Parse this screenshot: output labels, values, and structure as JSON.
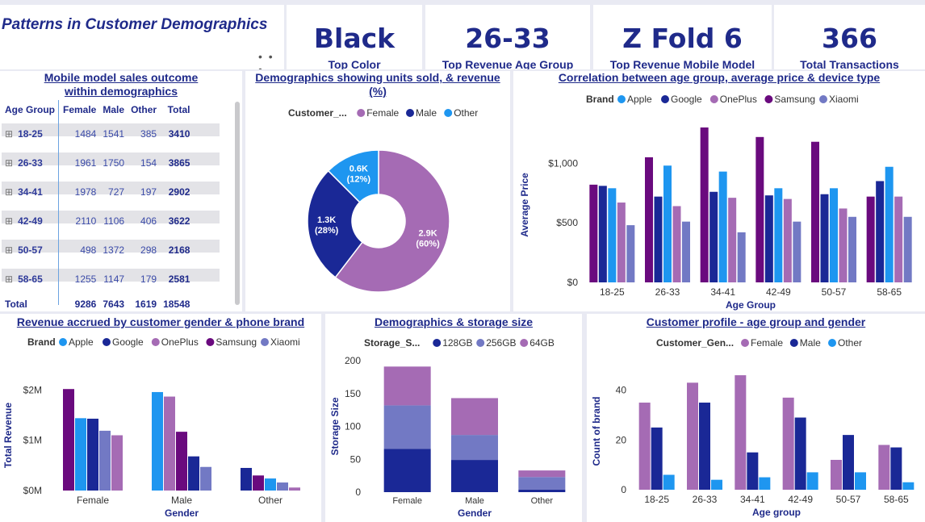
{
  "page_title": "Patterns in Customer Demographics",
  "menu_dots": "• • •",
  "kpis": [
    {
      "value": "Black",
      "label": "Top Color"
    },
    {
      "value": "26-33",
      "label": "Top Revenue Age Group"
    },
    {
      "value": "Z Fold 6",
      "label": "Top Revenue Mobile Model"
    },
    {
      "value": "366",
      "label": "Total Transactions"
    }
  ],
  "colors": {
    "Apple": "#1e96f0",
    "Google": "#1a2896",
    "OnePlus": "#a56bb4",
    "Samsung": "#6a0a7e",
    "Xiaomi": "#7279c4",
    "Female": "#a56bb4",
    "Male": "#1a2896",
    "Other": "#1e96f0",
    "128GB": "#1a2896",
    "256GB": "#7279c4",
    "64GB": "#a56bb4"
  },
  "matrix": {
    "title": "Mobile model sales outcome within demographics",
    "headers": [
      "Age Group",
      "Female",
      "Male",
      "Other",
      "Total"
    ],
    "rows": [
      [
        "18-25",
        "1484",
        "1541",
        "385",
        "3410"
      ],
      [
        "26-33",
        "1961",
        "1750",
        "154",
        "3865"
      ],
      [
        "34-41",
        "1978",
        "727",
        "197",
        "2902"
      ],
      [
        "42-49",
        "2110",
        "1106",
        "406",
        "3622"
      ],
      [
        "50-57",
        "498",
        "1372",
        "298",
        "2168"
      ],
      [
        "58-65",
        "1255",
        "1147",
        "179",
        "2581"
      ]
    ],
    "total": [
      "Total",
      "9286",
      "7643",
      "1619",
      "18548"
    ]
  },
  "chart_data": [
    {
      "id": "donut",
      "type": "pie",
      "title": "Demographics showing units sold, & revenue (%)",
      "legend_title": "Customer_...",
      "categories": [
        "Female",
        "Male",
        "Other"
      ],
      "values": [
        2.9,
        1.3,
        0.6
      ],
      "labels": [
        [
          "2.9K",
          "(60%)"
        ],
        [
          "1.3K",
          "(28%)"
        ],
        [
          "0.6K",
          "(12%)"
        ]
      ]
    },
    {
      "id": "corr",
      "type": "bar",
      "title": "Correlation between age group, average price & device type",
      "legend_title": "Brand",
      "xlabel": "Age Group",
      "ylabel": "Average Price",
      "ylim": [
        0,
        1300
      ],
      "yticks": [
        0,
        500,
        1000
      ],
      "ytick_labels": [
        "$0",
        "$500",
        "$1,000"
      ],
      "categories": [
        "18-25",
        "26-33",
        "34-41",
        "42-49",
        "50-57",
        "58-65"
      ],
      "series": [
        {
          "name": "Samsung",
          "values": [
            820,
            1050,
            1300,
            1220,
            1180,
            720
          ]
        },
        {
          "name": "Google",
          "values": [
            810,
            720,
            760,
            730,
            740,
            850
          ]
        },
        {
          "name": "Apple",
          "values": [
            790,
            980,
            930,
            790,
            790,
            970
          ]
        },
        {
          "name": "OnePlus",
          "values": [
            670,
            640,
            710,
            700,
            620,
            720
          ]
        },
        {
          "name": "Xiaomi",
          "values": [
            480,
            510,
            420,
            510,
            550,
            550
          ]
        }
      ],
      "legend_order": [
        "Apple",
        "Google",
        "OnePlus",
        "Samsung",
        "Xiaomi"
      ]
    },
    {
      "id": "revenue",
      "type": "bar",
      "title": "Revenue accrued by customer gender & phone brand",
      "legend_title": "Brand",
      "xlabel": "Gender",
      "ylabel": "Total Revenue",
      "ylim": [
        0,
        2.2
      ],
      "yticks": [
        0,
        1,
        2
      ],
      "ytick_labels": [
        "$0M",
        "$1M",
        "$2M"
      ],
      "categories": [
        "Female",
        "Male",
        "Other"
      ],
      "series_by_category": [
        [
          {
            "name": "Samsung",
            "value": 2.02
          },
          {
            "name": "Apple",
            "value": 1.44
          },
          {
            "name": "Google",
            "value": 1.43
          },
          {
            "name": "Xiaomi",
            "value": 1.19
          },
          {
            "name": "OnePlus",
            "value": 1.1
          }
        ],
        [
          {
            "name": "Apple",
            "value": 1.96
          },
          {
            "name": "OnePlus",
            "value": 1.87
          },
          {
            "name": "Samsung",
            "value": 1.17
          },
          {
            "name": "Google",
            "value": 0.68
          },
          {
            "name": "Xiaomi",
            "value": 0.47
          }
        ],
        [
          {
            "name": "Google",
            "value": 0.45
          },
          {
            "name": "Samsung",
            "value": 0.3
          },
          {
            "name": "Apple",
            "value": 0.24
          },
          {
            "name": "Xiaomi",
            "value": 0.16
          },
          {
            "name": "OnePlus",
            "value": 0.06
          }
        ]
      ],
      "legend_order": [
        "Apple",
        "Google",
        "OnePlus",
        "Samsung",
        "Xiaomi"
      ]
    },
    {
      "id": "storage",
      "type": "bar",
      "stacked": true,
      "title": "Demographics & storage size",
      "legend_title": "Storage_S...",
      "xlabel": "Gender",
      "ylabel": "Storage Size",
      "ylim": [
        0,
        200
      ],
      "yticks": [
        0,
        50,
        100,
        150,
        200
      ],
      "categories": [
        "Female",
        "Male",
        "Other"
      ],
      "series": [
        {
          "name": "128GB",
          "values": [
            66,
            49,
            4
          ]
        },
        {
          "name": "256GB",
          "values": [
            66,
            38,
            19
          ]
        },
        {
          "name": "64GB",
          "values": [
            59,
            56,
            10
          ]
        }
      ]
    },
    {
      "id": "profile",
      "type": "bar",
      "title": "Customer profile - age group and gender",
      "legend_title": "Customer_Gen...",
      "xlabel": "Age group",
      "ylabel": "Count of brand",
      "ylim": [
        0,
        47
      ],
      "yticks": [
        0,
        20,
        40
      ],
      "categories": [
        "18-25",
        "26-33",
        "34-41",
        "42-49",
        "50-57",
        "58-65"
      ],
      "series": [
        {
          "name": "Female",
          "values": [
            35,
            43,
            46,
            37,
            12,
            18
          ]
        },
        {
          "name": "Male",
          "values": [
            25,
            35,
            15,
            29,
            22,
            17
          ]
        },
        {
          "name": "Other",
          "values": [
            6,
            4,
            5,
            7,
            7,
            3
          ]
        }
      ]
    }
  ]
}
